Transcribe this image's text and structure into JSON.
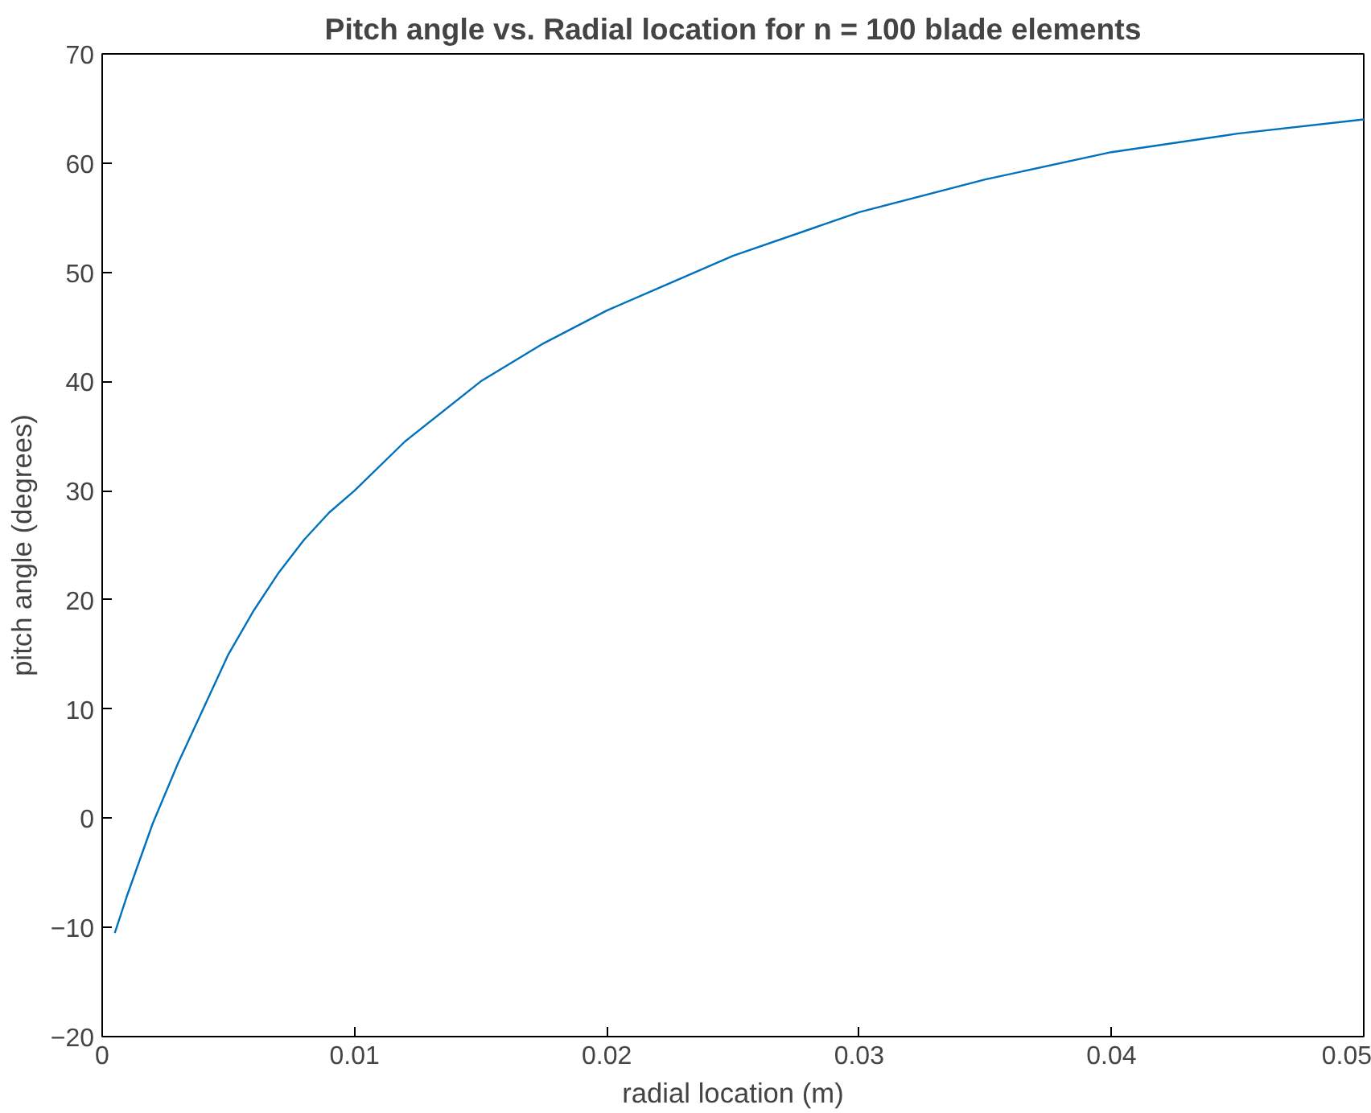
{
  "chart_data": {
    "type": "line",
    "title": "Pitch angle vs. Radial location for n = 100 blade elements",
    "xlabel": "radial location (m)",
    "ylabel": "pitch angle (degrees)",
    "x": [
      0.0005,
      0.001,
      0.002,
      0.003,
      0.004,
      0.005,
      0.006,
      0.007,
      0.008,
      0.009,
      0.01,
      0.012,
      0.015,
      0.0175,
      0.02,
      0.0225,
      0.025,
      0.03,
      0.035,
      0.04,
      0.045,
      0.05
    ],
    "series": [
      {
        "color": "#0072bd",
        "values": [
          -10.5,
          -7,
          -0.5,
          5,
          10,
          15,
          19,
          22.5,
          25.5,
          28,
          30,
          34.5,
          40,
          43.5,
          46.5,
          49,
          51.5,
          55.5,
          58.5,
          61,
          62.7,
          64
        ]
      }
    ],
    "xlim": [
      0,
      0.05
    ],
    "ylim": [
      -20,
      70
    ],
    "xticks": [
      0,
      0.01,
      0.02,
      0.03,
      0.04,
      0.05
    ],
    "yticks": [
      -20,
      -10,
      0,
      10,
      20,
      30,
      40,
      50,
      60,
      70
    ],
    "line_style": "solid"
  }
}
